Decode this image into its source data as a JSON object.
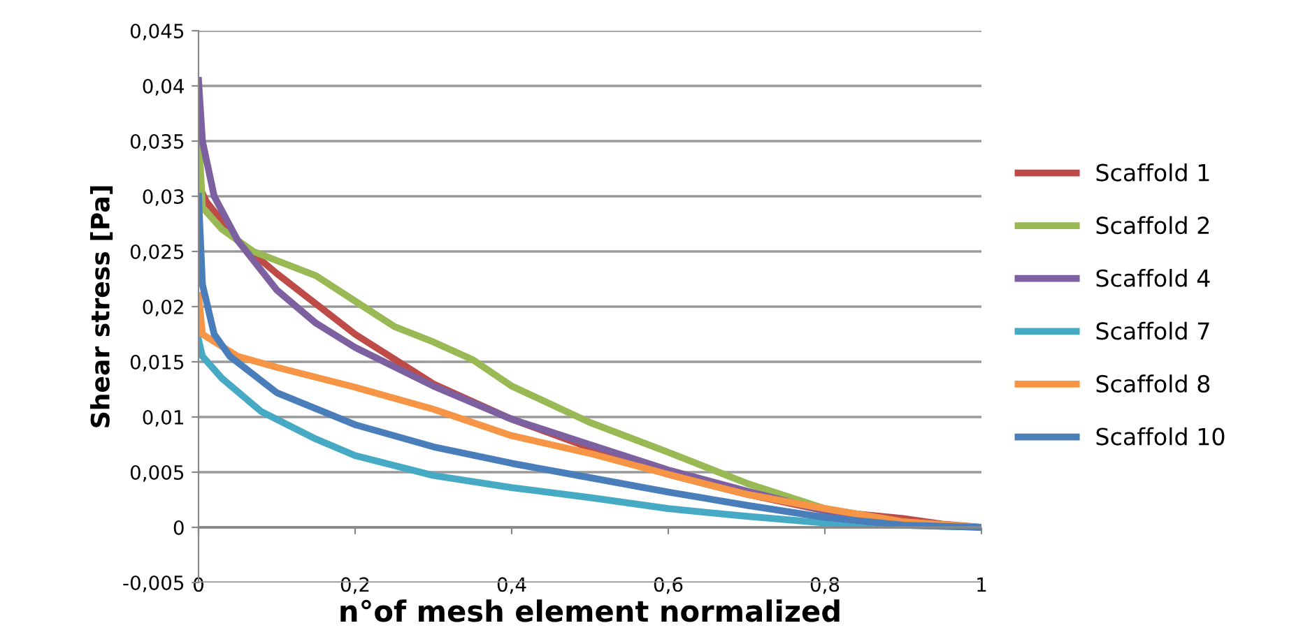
{
  "chart_data": {
    "type": "line",
    "xlabel": "n°of mesh element normalized",
    "ylabel": "Shear stress [Pa]",
    "xlim": [
      0,
      1
    ],
    "ylim": [
      -0.005,
      0.045
    ],
    "xticks": [
      {
        "value": 0,
        "label": "0"
      },
      {
        "value": 0.2,
        "label": "0,2"
      },
      {
        "value": 0.4,
        "label": "0,4"
      },
      {
        "value": 0.6,
        "label": "0,6"
      },
      {
        "value": 0.8,
        "label": "0,8"
      },
      {
        "value": 1,
        "label": "1"
      }
    ],
    "yticks": [
      {
        "value": -0.005,
        "label": "-0,005"
      },
      {
        "value": 0,
        "label": "0"
      },
      {
        "value": 0.005,
        "label": "0,005"
      },
      {
        "value": 0.01,
        "label": "0,01"
      },
      {
        "value": 0.015,
        "label": "0,015"
      },
      {
        "value": 0.02,
        "label": "0,02"
      },
      {
        "value": 0.025,
        "label": "0,025"
      },
      {
        "value": 0.03,
        "label": "0,03"
      },
      {
        "value": 0.035,
        "label": "0,035"
      },
      {
        "value": 0.04,
        "label": "0,04"
      },
      {
        "value": 0.045,
        "label": "0,045"
      }
    ],
    "grid": "y",
    "legend": "right",
    "marker": "none",
    "line_style": "solid",
    "series": [
      {
        "name": "Scaffold 1",
        "color": "#be4b48",
        "x": [
          0,
          0.01,
          0.05,
          0.1,
          0.2,
          0.3,
          0.4,
          0.5,
          0.6,
          0.7,
          0.8,
          0.9,
          0.95,
          1
        ],
        "values": [
          0.031,
          0.0295,
          0.026,
          0.023,
          0.0175,
          0.013,
          0.0098,
          0.0072,
          0.0048,
          0.003,
          0.0015,
          0.0008,
          0.0003,
          0
        ]
      },
      {
        "name": "Scaffold 2",
        "color": "#98b954",
        "x": [
          0,
          0.005,
          0.03,
          0.07,
          0.15,
          0.2,
          0.25,
          0.3,
          0.35,
          0.4,
          0.5,
          0.6,
          0.7,
          0.8,
          0.9,
          1
        ],
        "values": [
          0.036,
          0.029,
          0.027,
          0.025,
          0.0228,
          0.0205,
          0.0182,
          0.0168,
          0.0152,
          0.0128,
          0.0095,
          0.0068,
          0.004,
          0.0017,
          0.0005,
          0
        ]
      },
      {
        "name": "Scaffold 4",
        "color": "#7d60a0",
        "x": [
          0,
          0.005,
          0.02,
          0.05,
          0.1,
          0.15,
          0.2,
          0.3,
          0.4,
          0.5,
          0.6,
          0.7,
          0.8,
          0.9,
          1
        ],
        "values": [
          0.0405,
          0.035,
          0.03,
          0.026,
          0.0215,
          0.0185,
          0.0163,
          0.0128,
          0.0098,
          0.0075,
          0.0052,
          0.0033,
          0.0015,
          0.0004,
          0
        ]
      },
      {
        "name": "Scaffold 7",
        "color": "#46aac5",
        "x": [
          0,
          0.005,
          0.03,
          0.08,
          0.15,
          0.2,
          0.3,
          0.4,
          0.5,
          0.6,
          0.7,
          0.8,
          0.9,
          1
        ],
        "values": [
          0.017,
          0.0155,
          0.0135,
          0.0105,
          0.008,
          0.0065,
          0.0047,
          0.0036,
          0.0027,
          0.0017,
          0.001,
          0.0004,
          0.0002,
          0
        ]
      },
      {
        "name": "Scaffold 8",
        "color": "#f69545",
        "x": [
          0,
          0.005,
          0.05,
          0.1,
          0.2,
          0.3,
          0.4,
          0.5,
          0.6,
          0.7,
          0.8,
          0.9,
          1
        ],
        "values": [
          0.021,
          0.0175,
          0.0155,
          0.0145,
          0.0127,
          0.0107,
          0.0083,
          0.0067,
          0.0048,
          0.003,
          0.0017,
          0.0005,
          0
        ]
      },
      {
        "name": "Scaffold 10",
        "color": "#4a7ebb",
        "x": [
          0,
          0.005,
          0.02,
          0.04,
          0.1,
          0.2,
          0.3,
          0.4,
          0.5,
          0.6,
          0.7,
          0.8,
          0.9,
          1
        ],
        "values": [
          0.03,
          0.022,
          0.0175,
          0.0155,
          0.0122,
          0.0093,
          0.0073,
          0.0058,
          0.0045,
          0.0032,
          0.002,
          0.0009,
          0.0002,
          0
        ]
      }
    ]
  }
}
